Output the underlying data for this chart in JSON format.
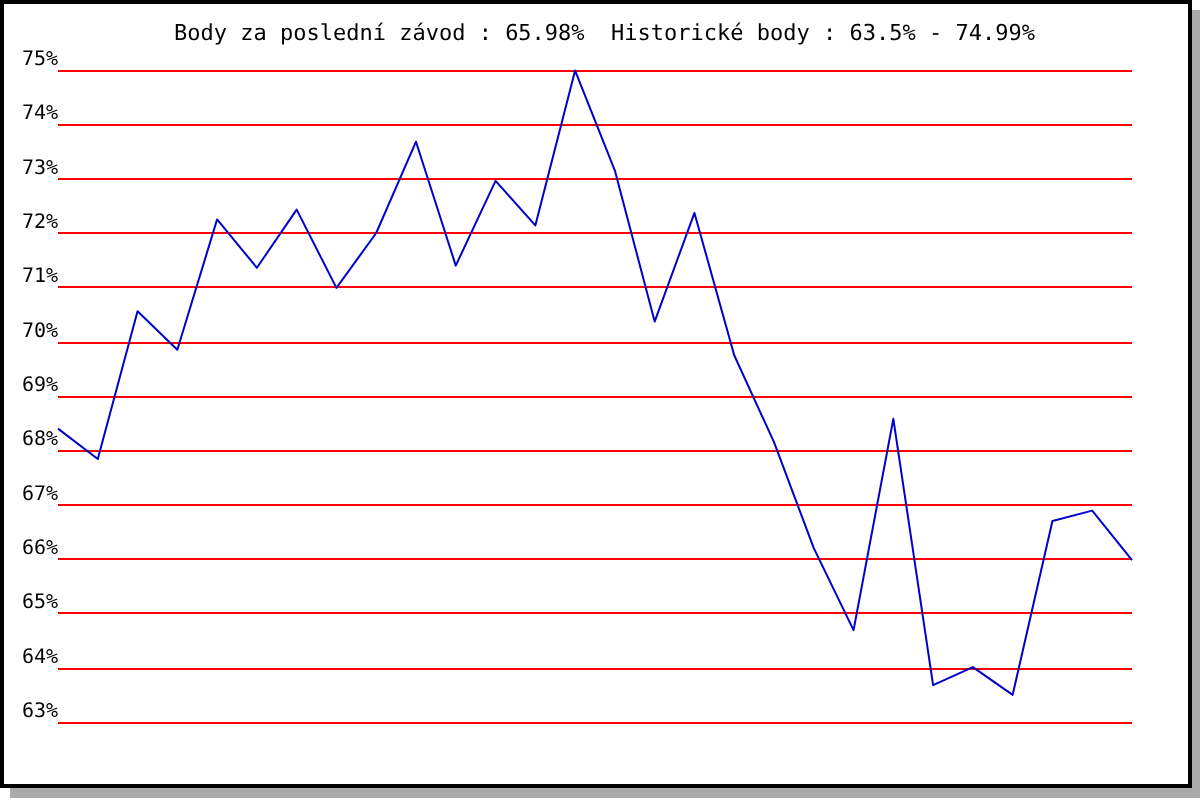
{
  "chart_data": {
    "type": "line",
    "title": "Body za poslední závod : 65.98%  Historické body : 63.5% - 74.99%",
    "categories": [
      null,
      null,
      null,
      null,
      null,
      null,
      null,
      null,
      null,
      null,
      null,
      null,
      null,
      null,
      null,
      null,
      null,
      null,
      null,
      null,
      null,
      null,
      null,
      null,
      null,
      null,
      null,
      null
    ],
    "series": [
      {
        "color": "#0000cc",
        "values": [
          68.4,
          67.84,
          70.56,
          69.85,
          72.25,
          71.36,
          72.43,
          70.99,
          72.0,
          73.68,
          71.4,
          72.96,
          72.14,
          74.99,
          73.15,
          70.37,
          72.37,
          69.75,
          68.15,
          66.2,
          64.69,
          68.58,
          63.68,
          64.01,
          63.5,
          66.7,
          66.89,
          65.98
        ]
      }
    ],
    "ylim": [
      63,
      75
    ],
    "yticks": [
      {
        "value": 63,
        "label": "63%"
      },
      {
        "value": 64,
        "label": "64%"
      },
      {
        "value": 65,
        "label": "65%"
      },
      {
        "value": 66,
        "label": "66%"
      },
      {
        "value": 67,
        "label": "67%"
      },
      {
        "value": 68,
        "label": "68%"
      },
      {
        "value": 69,
        "label": "69%"
      },
      {
        "value": 70,
        "label": "70%"
      },
      {
        "value": 71,
        "label": "71%"
      },
      {
        "value": 72,
        "label": "72%"
      },
      {
        "value": 73,
        "label": "73%"
      },
      {
        "value": 74,
        "label": "74%"
      },
      {
        "value": 75,
        "label": "75%"
      }
    ],
    "grid": "y",
    "marker": "none",
    "line_style": "solid"
  }
}
